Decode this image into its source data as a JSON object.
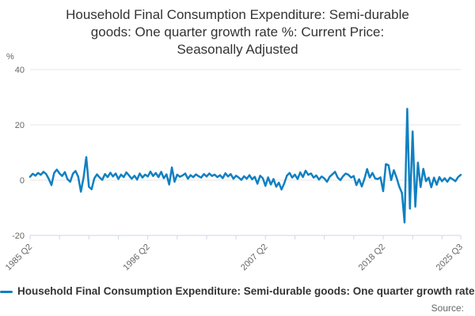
{
  "title_lines": [
    "Household Final Consumption Expenditure: Semi-durable",
    "goods: One quarter growth rate %: Current Price:",
    "Seasonally Adjusted"
  ],
  "y_axis_unit": "%",
  "legend": {
    "label": "Household Final Consumption Expenditure: Semi-durable goods: One quarter growth rate %: Current Price: Seasonally Adjusted"
  },
  "source": {
    "label": "Source:"
  },
  "colors": {
    "line": "#1080c1",
    "grid": "#e6e6e6",
    "axis": "#ccd6eb",
    "tick_text": "#666666",
    "title_text": "#333333"
  },
  "chart_data": {
    "type": "line",
    "title": "Household Final Consumption Expenditure: Semi-durable goods: One quarter growth rate %: Current Price: Seasonally Adjusted",
    "ylabel": "%",
    "xlabel": "",
    "frequency": "quarterly",
    "x_start": "1985 Q2",
    "x_end": "2025 Q3",
    "ylim": [
      -20,
      40
    ],
    "y_ticks": [
      40,
      20,
      0,
      -20
    ],
    "x_tick_labels": [
      "1985 Q2",
      "1996 Q2",
      "2007 Q2",
      "2018 Q2",
      "2025 Q3"
    ],
    "x_tick_quarters": [
      0,
      44,
      88,
      132,
      161
    ],
    "minor_tick_every_quarters": 11,
    "grid": true,
    "legend_position": "bottom-center",
    "values": [
      1.2,
      2.3,
      1.6,
      2.6,
      1.9,
      3.0,
      2.2,
      0.4,
      -1.8,
      2.6,
      3.8,
      2.4,
      1.5,
      2.9,
      0.3,
      -0.6,
      2.3,
      3.3,
      1.2,
      -4.2,
      1.0,
      8.3,
      -2.4,
      -3.3,
      0.6,
      2.1,
      0.9,
      0.1,
      2.2,
      1.1,
      2.7,
      1.3,
      2.4,
      0.4,
      2.0,
      1.1,
      2.8,
      1.7,
      0.5,
      1.6,
      0.2,
      2.4,
      0.9,
      2.0,
      1.3,
      3.1,
      1.5,
      2.6,
      1.1,
      3.0,
      0.7,
      2.1,
      -1.6,
      4.6,
      -0.6,
      2.0,
      1.2,
      1.7,
      2.4,
      0.5,
      1.8,
      1.1,
      2.1,
      1.4,
      0.9,
      2.2,
      1.3,
      2.4,
      1.5,
      2.0,
      1.1,
      1.8,
      0.7,
      2.5,
      1.3,
      2.2,
      0.5,
      1.6,
      0.9,
      0.1,
      1.4,
      0.5,
      1.8,
      0.3,
      1.2,
      -1.3,
      1.6,
      0.7,
      -2.1,
      1.0,
      -1.6,
      0.4,
      -2.4,
      -0.9,
      -3.4,
      -1.2,
      1.6,
      2.6,
      0.9,
      2.0,
      0.4,
      2.8,
      1.1,
      3.4,
      1.9,
      2.4,
      0.9,
      1.7,
      0.2,
      1.3,
      0.6,
      -0.6,
      1.2,
      2.1,
      3.0,
      0.9,
      0.0,
      1.4,
      2.4,
      1.9,
      0.9,
      1.5,
      -1.8,
      0.3,
      -2.3,
      0.5,
      4.0,
      0.9,
      2.6,
      0.6,
      0.4,
      1.0,
      -4.0,
      5.8,
      5.4,
      0.0,
      3.6,
      0.9,
      -2.3,
      -4.6,
      -15.3,
      25.8,
      -10.3,
      17.6,
      -9.6,
      6.3,
      -2.5,
      4.1,
      -0.4,
      0.9,
      -2.6,
      0.9,
      -1.7,
      1.1,
      -0.4,
      0.7,
      -0.6,
      0.9,
      0.3,
      -0.4,
      1.1,
      1.9
    ]
  }
}
